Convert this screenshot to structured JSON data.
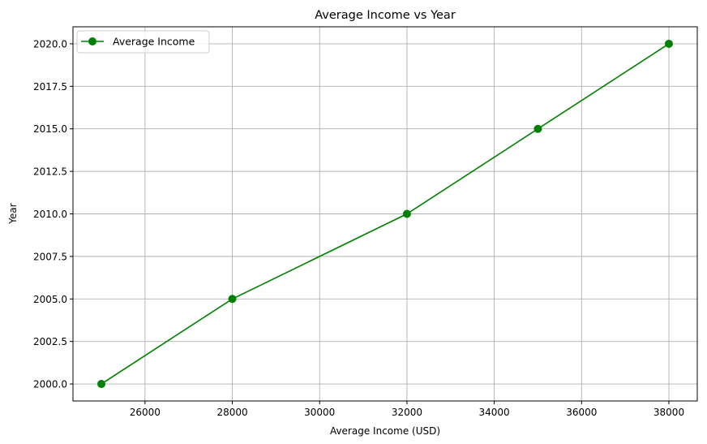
{
  "chart_data": {
    "type": "line",
    "title": "Average Income vs Year",
    "xlabel": "Average Income (USD)",
    "ylabel": "Year",
    "xlim": [
      24350,
      38650
    ],
    "ylim": [
      1999,
      2021
    ],
    "x_ticks": [
      26000,
      28000,
      30000,
      32000,
      34000,
      36000,
      38000
    ],
    "x_tick_labels": [
      "26000",
      "28000",
      "30000",
      "32000",
      "34000",
      "36000",
      "38000"
    ],
    "y_ticks": [
      2000,
      2002.5,
      2005,
      2007.5,
      2010,
      2012.5,
      2015,
      2017.5,
      2020
    ],
    "y_tick_labels": [
      "2000.0",
      "2002.5",
      "2005.0",
      "2007.5",
      "2010.0",
      "2012.5",
      "2015.0",
      "2017.5",
      "2020.0"
    ],
    "grid": true,
    "legend_position": "upper-left",
    "series": [
      {
        "name": "Average Income",
        "color": "#008000",
        "marker": "circle",
        "x": [
          25000,
          28000,
          32000,
          35000,
          38000
        ],
        "y": [
          2000,
          2005,
          2010,
          2015,
          2020
        ]
      }
    ]
  }
}
